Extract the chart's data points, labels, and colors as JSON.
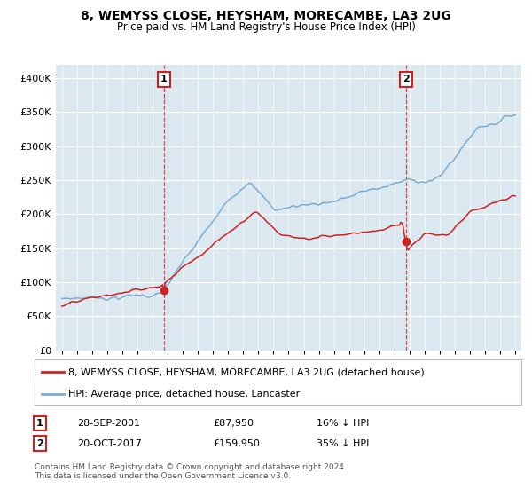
{
  "title": "8, WEMYSS CLOSE, HEYSHAM, MORECAMBE, LA3 2UG",
  "subtitle": "Price paid vs. HM Land Registry's House Price Index (HPI)",
  "hpi_color": "#7aadd4",
  "price_color": "#cc2222",
  "legend_label_price": "8, WEMYSS CLOSE, HEYSHAM, MORECAMBE, LA3 2UG (detached house)",
  "legend_label_hpi": "HPI: Average price, detached house, Lancaster",
  "transaction1_label": "1",
  "transaction1_date": "28-SEP-2001",
  "transaction1_price": "£87,950",
  "transaction1_hpi": "16% ↓ HPI",
  "transaction2_label": "2",
  "transaction2_date": "20-OCT-2017",
  "transaction2_price": "£159,950",
  "transaction2_hpi": "35% ↓ HPI",
  "footnote": "Contains HM Land Registry data © Crown copyright and database right 2024.\nThis data is licensed under the Open Government Licence v3.0.",
  "ylim": [
    0,
    420000
  ],
  "yticks": [
    0,
    50000,
    100000,
    150000,
    200000,
    250000,
    300000,
    350000,
    400000
  ],
  "background_color": "#dce8f0",
  "sale1_year": 2001.75,
  "sale1_price": 87950,
  "sale2_year": 2017.79,
  "sale2_price": 159950
}
